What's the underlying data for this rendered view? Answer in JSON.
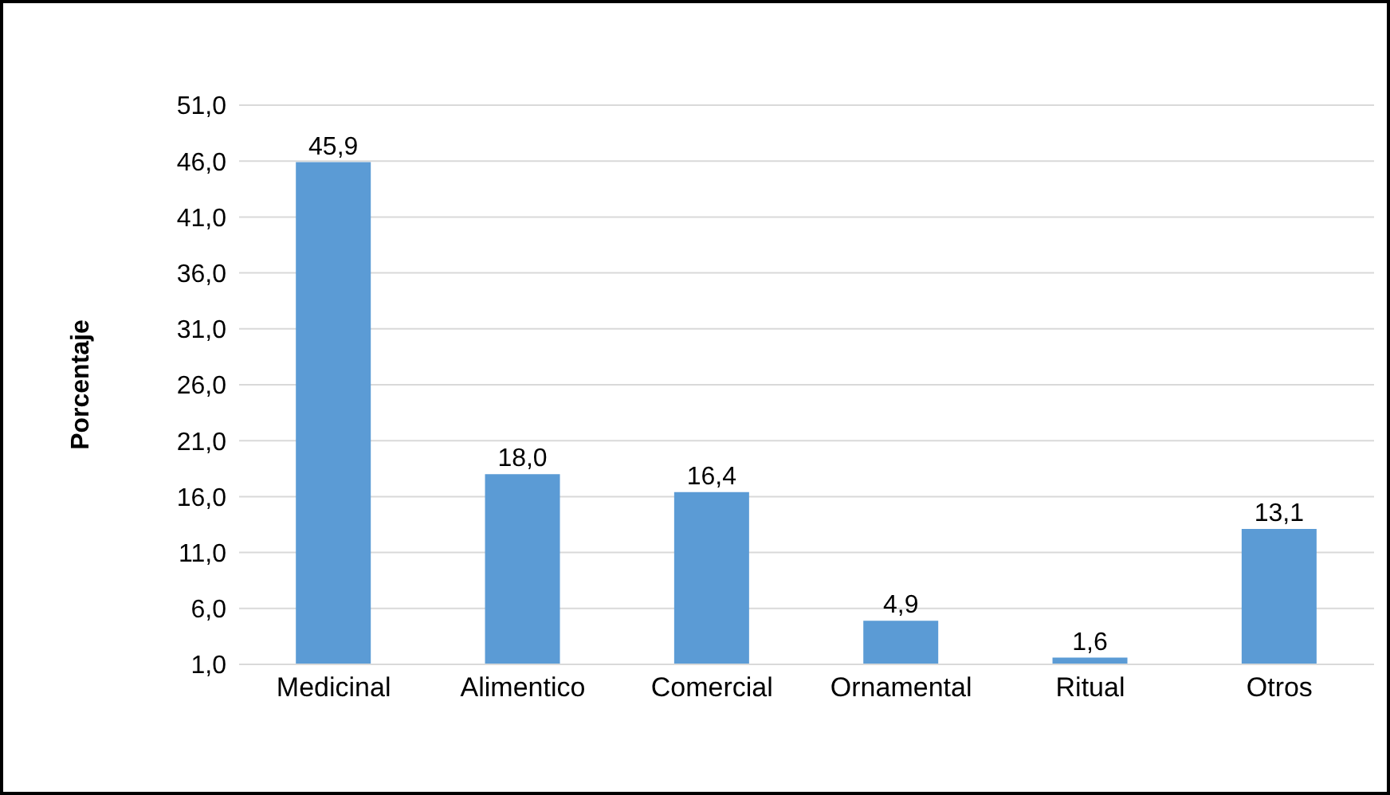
{
  "chart_data": {
    "type": "bar",
    "ylabel": "Porcentaje",
    "categories": [
      "Medicinal",
      "Alimentico",
      "Comercial",
      "Ornamental",
      "Ritual",
      "Otros"
    ],
    "values": [
      45.9,
      18.0,
      16.4,
      4.9,
      1.6,
      13.1
    ],
    "value_labels": [
      "45,9",
      "18,0",
      "16,4",
      "4,9",
      "1,6",
      "13,1"
    ],
    "color": "#5b9bd5",
    "ylim": [
      1,
      51
    ],
    "yticks": [
      {
        "value": 1,
        "label": "1,0"
      },
      {
        "value": 6,
        "label": "6,0"
      },
      {
        "value": 11,
        "label": "11,0"
      },
      {
        "value": 16,
        "label": "16,0"
      },
      {
        "value": 21,
        "label": "21,0"
      },
      {
        "value": 26,
        "label": "26,0"
      },
      {
        "value": 31,
        "label": "31,0"
      },
      {
        "value": 36,
        "label": "36,0"
      },
      {
        "value": 41,
        "label": "41,0"
      },
      {
        "value": 46,
        "label": "46,0"
      },
      {
        "value": 51,
        "label": "51,0"
      }
    ],
    "grid": "y"
  }
}
